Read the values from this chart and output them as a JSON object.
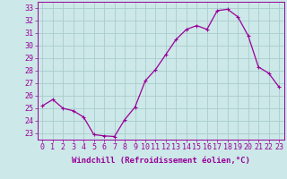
{
  "x": [
    0,
    1,
    2,
    3,
    4,
    5,
    6,
    7,
    8,
    9,
    10,
    11,
    12,
    13,
    14,
    15,
    16,
    17,
    18,
    19,
    20,
    21,
    22,
    23
  ],
  "y": [
    25.2,
    25.7,
    25.0,
    24.8,
    24.3,
    22.9,
    22.8,
    22.75,
    24.1,
    25.1,
    27.2,
    28.1,
    29.3,
    30.5,
    31.3,
    31.6,
    31.3,
    32.8,
    32.9,
    32.3,
    30.8,
    28.3,
    27.8,
    26.7
  ],
  "line_color": "#990099",
  "marker": "+",
  "marker_size": 3,
  "marker_linewidth": 0.8,
  "line_width": 0.9,
  "bg_color": "#cce8e8",
  "grid_color": "#aacccc",
  "xlabel": "Windchill (Refroidissement éolien,°C)",
  "xlabel_fontsize": 6.5,
  "tick_fontsize": 6.0,
  "ylim": [
    22.5,
    33.5
  ],
  "yticks": [
    23,
    24,
    25,
    26,
    27,
    28,
    29,
    30,
    31,
    32,
    33
  ],
  "xticks": [
    0,
    1,
    2,
    3,
    4,
    5,
    6,
    7,
    8,
    9,
    10,
    11,
    12,
    13,
    14,
    15,
    16,
    17,
    18,
    19,
    20,
    21,
    22,
    23
  ],
  "xtick_labels": [
    "0",
    "1",
    "2",
    "3",
    "4",
    "5",
    "6",
    "7",
    "8",
    "9",
    "10",
    "11",
    "12",
    "13",
    "14",
    "15",
    "16",
    "17",
    "18",
    "19",
    "20",
    "21",
    "22",
    "23"
  ]
}
